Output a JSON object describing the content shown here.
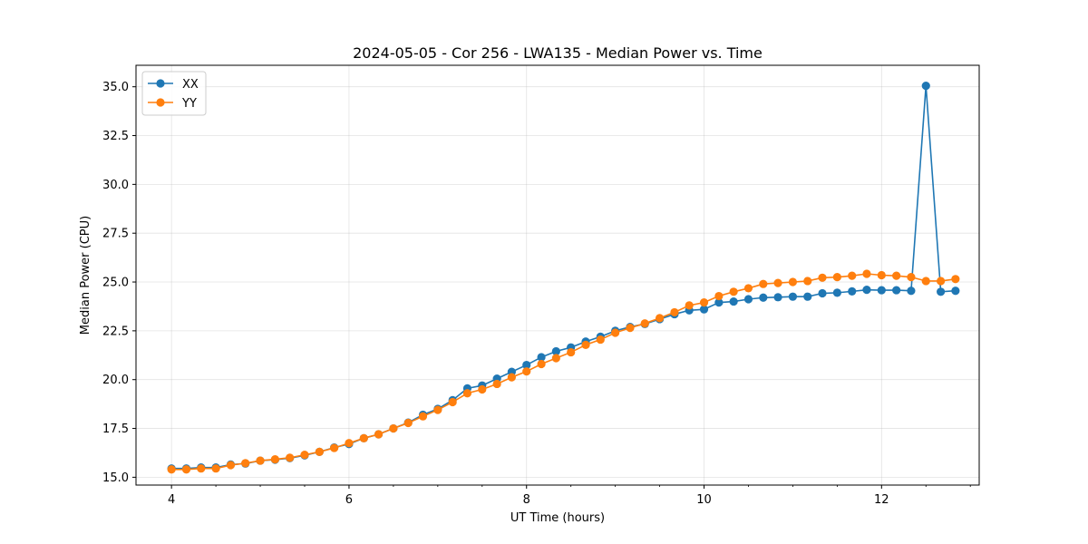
{
  "chart_data": {
    "type": "line",
    "title": "2024-05-05 - Cor 256 - LWA135 - Median Power vs. Time",
    "xlabel": "UT Time (hours)",
    "ylabel": "Median Power (CPU)",
    "xlim": [
      3.6,
      13.1
    ],
    "ylim": [
      14.6,
      36.1
    ],
    "xticks": [
      4,
      6,
      8,
      10,
      12
    ],
    "xtick_labels": [
      "4",
      "6",
      "8",
      "10",
      "12"
    ],
    "yticks": [
      15.0,
      17.5,
      20.0,
      22.5,
      25.0,
      27.5,
      30.0,
      32.5,
      35.0
    ],
    "ytick_labels": [
      "15.0",
      "17.5",
      "20.0",
      "22.5",
      "25.0",
      "27.5",
      "30.0",
      "32.5",
      "35.0"
    ],
    "grid": true,
    "legend_position": "top-left",
    "x": [
      4.0,
      4.167,
      4.333,
      4.5,
      4.667,
      4.833,
      5.0,
      5.167,
      5.333,
      5.5,
      5.667,
      5.833,
      6.0,
      6.167,
      6.333,
      6.5,
      6.667,
      6.833,
      7.0,
      7.167,
      7.333,
      7.5,
      7.667,
      7.833,
      8.0,
      8.167,
      8.333,
      8.5,
      8.667,
      8.833,
      9.0,
      9.167,
      9.333,
      9.5,
      9.667,
      9.833,
      10.0,
      10.167,
      10.333,
      10.5,
      10.667,
      10.833,
      11.0,
      11.167,
      11.333,
      11.5,
      11.667,
      11.833,
      12.0,
      12.167,
      12.333,
      12.5,
      12.667,
      12.833
    ],
    "series": [
      {
        "name": "XX",
        "color": "#1f77b4",
        "values": [
          15.45,
          15.45,
          15.5,
          15.5,
          15.65,
          15.7,
          15.85,
          15.9,
          15.98,
          16.12,
          16.3,
          16.52,
          16.7,
          17.0,
          17.2,
          17.5,
          17.8,
          18.2,
          18.5,
          18.95,
          19.55,
          19.7,
          20.05,
          20.4,
          20.75,
          21.15,
          21.45,
          21.65,
          21.95,
          22.2,
          22.5,
          22.7,
          22.85,
          23.1,
          23.35,
          23.55,
          23.6,
          23.95,
          24.0,
          24.12,
          24.2,
          24.22,
          24.25,
          24.25,
          24.42,
          24.45,
          24.52,
          24.6,
          24.58,
          24.58,
          24.55,
          35.05,
          24.5,
          24.55
        ]
      },
      {
        "name": "YY",
        "color": "#ff7f0e",
        "values": [
          15.4,
          15.4,
          15.45,
          15.45,
          15.62,
          15.72,
          15.85,
          15.92,
          16.0,
          16.15,
          16.3,
          16.5,
          16.75,
          17.0,
          17.2,
          17.5,
          17.78,
          18.12,
          18.45,
          18.85,
          19.3,
          19.5,
          19.78,
          20.12,
          20.42,
          20.8,
          21.1,
          21.4,
          21.78,
          22.05,
          22.4,
          22.65,
          22.88,
          23.15,
          23.45,
          23.8,
          23.95,
          24.28,
          24.5,
          24.68,
          24.9,
          24.95,
          25.0,
          25.05,
          25.22,
          25.25,
          25.32,
          25.42,
          25.35,
          25.32,
          25.25,
          25.05,
          25.05,
          25.15
        ]
      }
    ]
  }
}
